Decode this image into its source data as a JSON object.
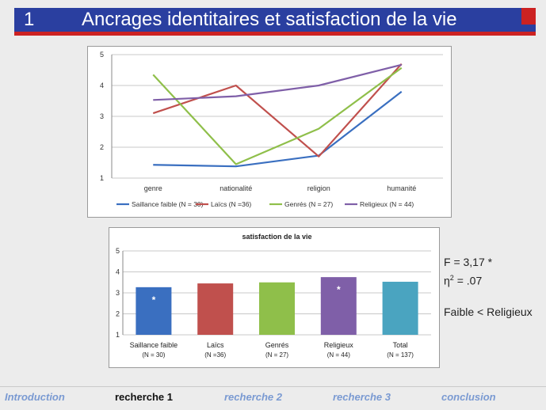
{
  "slide": {
    "number": "1",
    "title": "Ancrages identitaires et satisfaction de la vie"
  },
  "stats": {
    "f_line": "F = 3,17 *",
    "eta_symbol": "η",
    "eta_exp": "2",
    "eta_value": "= .07",
    "comparison": "Faible < Religieux"
  },
  "nav": {
    "items": [
      {
        "label": "Introduction"
      },
      {
        "label": "recherche 1"
      },
      {
        "label": "recherche 2"
      },
      {
        "label": "recherche 3"
      },
      {
        "label": "conclusion"
      }
    ]
  },
  "colors": {
    "header_blue": "#2a3fa0",
    "header_red": "#cc2222",
    "nav_inactive": "#7a9ad2"
  },
  "chart_data": [
    {
      "type": "line",
      "title": "",
      "categories": [
        "genre",
        "nationalité",
        "religion",
        "humanité"
      ],
      "ylim": [
        1,
        5
      ],
      "yticks": [
        "1",
        "2",
        "3",
        "4",
        "5"
      ],
      "grid": true,
      "legend_position": "bottom",
      "series": [
        {
          "name": "Saillance faible  (N = 30)",
          "color": "#3a6fc0",
          "values": [
            1.43,
            1.38,
            1.73,
            3.8
          ]
        },
        {
          "name": "Laïcs (N =36)",
          "color": "#c0504d",
          "values": [
            3.1,
            4.0,
            1.7,
            4.7
          ]
        },
        {
          "name": "Genrés (N = 27)",
          "color": "#8fbf4a",
          "values": [
            4.35,
            1.45,
            2.6,
            4.57
          ]
        },
        {
          "name": "Religieux  (N = 44)",
          "color": "#7f5fa8",
          "values": [
            3.53,
            3.65,
            4.0,
            4.67
          ]
        }
      ]
    },
    {
      "type": "bar",
      "title": "satisfaction de la vie",
      "ylim": [
        1,
        5
      ],
      "yticks": [
        "1",
        "2",
        "3",
        "4",
        "5"
      ],
      "grid": true,
      "categories": [
        {
          "label": "Saillance faible",
          "n": "(N  = 30)"
        },
        {
          "label": "Laïcs",
          "n": "(N =36)"
        },
        {
          "label": "Genrés",
          "n": "(N = 27)"
        },
        {
          "label": "Religieux",
          "n": "(N = 44)"
        },
        {
          "label": "Total",
          "n": "(N = 137)"
        }
      ],
      "values": [
        3.27,
        3.45,
        3.5,
        3.75,
        3.53
      ],
      "colors": [
        "#3a6fc0",
        "#c0504d",
        "#8fbf4a",
        "#7f5fa8",
        "#4aa4c0"
      ],
      "annotations": [
        "*",
        "",
        "",
        "*",
        ""
      ]
    }
  ]
}
